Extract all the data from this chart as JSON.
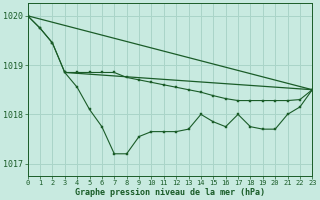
{
  "title": "Graphe pression niveau de la mer (hPa)",
  "bg_color": "#c8eae0",
  "grid_color": "#aad4c8",
  "line_color": "#1a5c28",
  "xlim": [
    0,
    23
  ],
  "ylim": [
    1016.75,
    1020.25
  ],
  "yticks": [
    1017,
    1018,
    1019,
    1020
  ],
  "xtick_labels": [
    "0",
    "1",
    "2",
    "3",
    "4",
    "5",
    "6",
    "7",
    "8",
    "9",
    "10",
    "11",
    "12",
    "13",
    "14",
    "15",
    "16",
    "17",
    "18",
    "19",
    "20",
    "21",
    "22",
    "23"
  ],
  "series_zigzag": [
    1020.0,
    1019.75,
    1019.45,
    1018.85,
    1018.55,
    1018.1,
    1017.75,
    1017.2,
    1017.2,
    1017.55,
    1017.65,
    1017.65,
    1017.65,
    1017.7,
    1018.0,
    1017.85,
    1017.75,
    1018.0,
    1017.75,
    1017.7,
    1017.7,
    1018.0,
    1018.15,
    1018.5
  ],
  "series_smooth": [
    1020.0,
    1019.75,
    1019.45,
    1018.85,
    1018.85,
    1018.85,
    1018.85,
    1018.85,
    1018.75,
    1018.7,
    1018.65,
    1018.6,
    1018.55,
    1018.5,
    1018.45,
    1018.38,
    1018.32,
    1018.28,
    1018.28,
    1018.28,
    1018.28,
    1018.28,
    1018.3,
    1018.5
  ],
  "line1_x": [
    0,
    23
  ],
  "line1_y": [
    1020.0,
    1018.5
  ],
  "line2_x": [
    3,
    23
  ],
  "line2_y": [
    1018.85,
    1018.5
  ]
}
